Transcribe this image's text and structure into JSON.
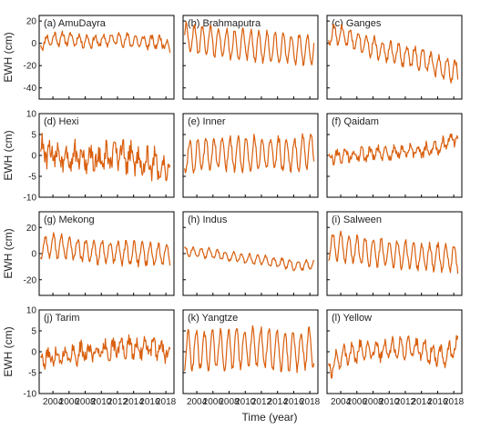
{
  "chart_data": {
    "type": "line",
    "color": "#d95f0e",
    "xlabel": "Time (year)",
    "ylabel": "EWH (cm)",
    "xlim": [
      2002.3,
      2019.0
    ],
    "x_tick_values": [
      2004,
      2006,
      2008,
      2010,
      2012,
      2014,
      2016,
      2018
    ],
    "x_tick_labels": [
      "2004",
      "2006",
      "2008",
      "2010",
      "2012",
      "2014",
      "2016",
      "2018"
    ],
    "rows": [
      {
        "ylim": [
          -50,
          25
        ],
        "y_ticks": [
          20,
          0,
          -20,
          -40
        ]
      },
      {
        "ylim": [
          -10,
          10
        ],
        "y_ticks": [
          10,
          5,
          0,
          -5,
          -10
        ]
      },
      {
        "ylim": [
          -32,
          32
        ],
        "y_ticks": [
          20,
          0,
          -20
        ]
      },
      {
        "ylim": [
          -10,
          10
        ],
        "y_ticks": [
          10,
          5,
          0,
          -5,
          -10
        ]
      }
    ],
    "panels": [
      {
        "title": "(a) AmuDayra",
        "row": 0,
        "col": 0,
        "base": 3,
        "trend": -0.1,
        "amp": 5,
        "noise": 2.5,
        "seed": 11,
        "points": [
          [
            2002.5,
            0
          ],
          [
            2004,
            4
          ],
          [
            2006,
            4
          ],
          [
            2008,
            2
          ],
          [
            2010,
            2
          ],
          [
            2012,
            4
          ],
          [
            2014,
            2
          ],
          [
            2016,
            1
          ],
          [
            2018,
            1
          ],
          [
            2018.6,
            -8
          ]
        ]
      },
      {
        "title": "(b) Brahmaputra",
        "row": 0,
        "col": 1,
        "base": 4,
        "trend": -0.4,
        "amp": 13,
        "noise": 2.5,
        "seed": 22,
        "points": [
          [
            2002.5,
            5
          ],
          [
            2004,
            3
          ],
          [
            2006,
            2
          ],
          [
            2008,
            -1
          ],
          [
            2010,
            -1
          ],
          [
            2012,
            -3
          ],
          [
            2014,
            -4
          ],
          [
            2016,
            -5
          ],
          [
            2018,
            -5
          ]
        ]
      },
      {
        "title": "(c) Ganges",
        "row": 0,
        "col": 2,
        "base": 6,
        "trend": -1.7,
        "amp": 9,
        "noise": 3,
        "seed": 33,
        "points": [
          [
            2002.5,
            8
          ],
          [
            2004,
            7
          ],
          [
            2006,
            3
          ],
          [
            2008,
            -3
          ],
          [
            2010,
            -8
          ],
          [
            2012,
            -11
          ],
          [
            2014,
            -14
          ],
          [
            2016,
            -20
          ],
          [
            2018,
            -25
          ]
        ]
      },
      {
        "title": "(d) Hexi",
        "row": 1,
        "col": 0,
        "base": 0.5,
        "trend": -0.2,
        "amp": 2.2,
        "noise": 2.5,
        "seed": 44,
        "points": [
          [
            2002.5,
            1
          ],
          [
            2004,
            0
          ],
          [
            2006,
            0
          ],
          [
            2008,
            -1
          ],
          [
            2010,
            -1
          ],
          [
            2012,
            0
          ],
          [
            2014,
            -1
          ],
          [
            2016,
            -2
          ],
          [
            2018,
            -3
          ]
        ]
      },
      {
        "title": "(e) Inner",
        "row": 1,
        "col": 1,
        "base": 0,
        "trend": 0.02,
        "amp": 3.8,
        "noise": 1,
        "seed": 55,
        "points": [
          [
            2002.5,
            0
          ],
          [
            2004,
            0
          ],
          [
            2006,
            0.5
          ],
          [
            2008,
            0.5
          ],
          [
            2010,
            0.5
          ],
          [
            2012,
            0.5
          ],
          [
            2014,
            0.5
          ],
          [
            2016,
            0
          ],
          [
            2018,
            1
          ]
        ]
      },
      {
        "title": "(f) Qaidam",
        "row": 1,
        "col": 2,
        "base": -1,
        "trend": 0.25,
        "amp": 1.2,
        "noise": 1,
        "seed": 66,
        "points": [
          [
            2002.5,
            -0.5
          ],
          [
            2004,
            0
          ],
          [
            2006,
            0
          ],
          [
            2008,
            0.5
          ],
          [
            2010,
            0.5
          ],
          [
            2012,
            1
          ],
          [
            2014,
            1
          ],
          [
            2016,
            2
          ],
          [
            2017,
            3
          ],
          [
            2018,
            4
          ]
        ]
      },
      {
        "title": "(g) Mekong",
        "row": 2,
        "col": 0,
        "base": 5,
        "trend": -0.2,
        "amp": 8,
        "noise": 2.5,
        "seed": 77,
        "points": [
          [
            2002.5,
            5
          ],
          [
            2004,
            6
          ],
          [
            2006,
            4
          ],
          [
            2008,
            2
          ],
          [
            2010,
            1
          ],
          [
            2012,
            1
          ],
          [
            2014,
            0
          ],
          [
            2016,
            0
          ],
          [
            2018,
            -1
          ]
        ]
      },
      {
        "title": "(h) Indus",
        "row": 2,
        "col": 1,
        "base": 2,
        "trend": -0.7,
        "amp": 3.5,
        "noise": 1.2,
        "seed": 88,
        "points": [
          [
            2002.5,
            2
          ],
          [
            2004,
            1
          ],
          [
            2006,
            0
          ],
          [
            2008,
            -2
          ],
          [
            2010,
            -4
          ],
          [
            2012,
            -5
          ],
          [
            2014,
            -7
          ],
          [
            2016,
            -9
          ],
          [
            2018,
            -9
          ]
        ]
      },
      {
        "title": "(i) Salween",
        "row": 2,
        "col": 2,
        "base": 5,
        "trend": -0.5,
        "amp": 10,
        "noise": 2.5,
        "seed": 99,
        "points": [
          [
            2002.5,
            6
          ],
          [
            2004,
            5
          ],
          [
            2006,
            2
          ],
          [
            2008,
            1
          ],
          [
            2010,
            0
          ],
          [
            2012,
            -1
          ],
          [
            2014,
            -2
          ],
          [
            2016,
            -3
          ],
          [
            2018,
            -3
          ]
        ]
      },
      {
        "title": "(j) Tarim",
        "row": 3,
        "col": 0,
        "base": -1.5,
        "trend": 0.12,
        "amp": 1.6,
        "noise": 1.6,
        "seed": 111,
        "points": [
          [
            2002.5,
            -2
          ],
          [
            2004,
            -1
          ],
          [
            2006,
            -1
          ],
          [
            2008,
            0
          ],
          [
            2010,
            0
          ],
          [
            2012,
            1
          ],
          [
            2014,
            1
          ],
          [
            2016,
            1
          ],
          [
            2018,
            0
          ]
        ]
      },
      {
        "title": "(k) Yangtze",
        "row": 3,
        "col": 1,
        "base": 0.5,
        "trend": 0,
        "amp": 4.5,
        "noise": 1,
        "seed": 122,
        "points": [
          [
            2002.5,
            0
          ],
          [
            2004,
            0.5
          ],
          [
            2006,
            0.5
          ],
          [
            2008,
            0.5
          ],
          [
            2010,
            1
          ],
          [
            2012,
            1
          ],
          [
            2014,
            0.5
          ],
          [
            2016,
            0
          ],
          [
            2018,
            1
          ]
        ]
      },
      {
        "title": "(l) Yellow",
        "row": 3,
        "col": 2,
        "base": -2,
        "trend": 0.1,
        "amp": 2,
        "noise": 1.2,
        "seed": 133,
        "points": [
          [
            2002.5,
            -4
          ],
          [
            2004,
            -1
          ],
          [
            2006,
            0
          ],
          [
            2008,
            0.5
          ],
          [
            2010,
            0.5
          ],
          [
            2012,
            1
          ],
          [
            2014,
            0.5
          ],
          [
            2016,
            -1
          ],
          [
            2017,
            -1
          ],
          [
            2018,
            1
          ]
        ]
      }
    ]
  }
}
